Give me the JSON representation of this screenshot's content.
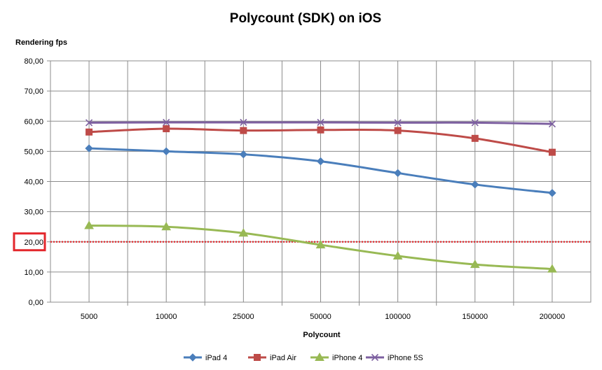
{
  "chart_data": {
    "type": "line",
    "title": "Polycount (SDK) on iOS",
    "xlabel": "Polycount",
    "ylabel": "Rendering fps",
    "categories": [
      "5000",
      "10000",
      "25000",
      "50000",
      "100000",
      "150000",
      "200000"
    ],
    "y_ticks": [
      "0,00",
      "10,00",
      "20,00",
      "30,00",
      "40,00",
      "50,00",
      "60,00",
      "70,00",
      "80,00"
    ],
    "ylim": [
      0,
      80
    ],
    "grid": true,
    "legend_position": "bottom",
    "series": [
      {
        "name": "iPad 4",
        "color": "#4a7ebb",
        "marker": "diamond",
        "values": [
          51.0,
          50.0,
          49.0,
          46.7,
          42.8,
          39.0,
          36.2
        ]
      },
      {
        "name": "iPad Air",
        "color": "#be4b48",
        "marker": "square",
        "values": [
          56.4,
          57.5,
          56.9,
          57.1,
          56.9,
          54.3,
          49.7
        ]
      },
      {
        "name": "iPhone 4",
        "color": "#98b954",
        "marker": "triangle",
        "values": [
          25.4,
          25.0,
          22.9,
          19.0,
          15.3,
          12.5,
          11.0
        ]
      },
      {
        "name": "iPhone 5S",
        "color": "#7d60a0",
        "marker": "x",
        "values": [
          59.5,
          59.6,
          59.6,
          59.6,
          59.5,
          59.5,
          59.1
        ]
      }
    ],
    "annotations": {
      "threshold_line": {
        "value": 20,
        "color": "#e3262b",
        "style": "dotted"
      },
      "highlighted_tick": {
        "label": "20,00",
        "color": "#e3262b"
      }
    }
  }
}
